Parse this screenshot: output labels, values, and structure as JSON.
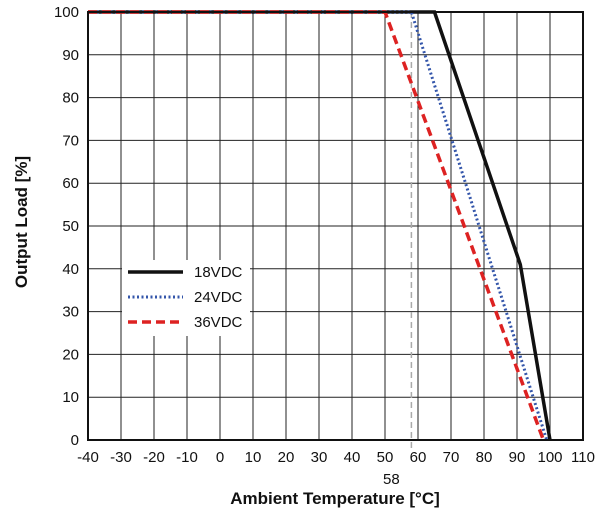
{
  "chart_data": {
    "type": "line",
    "xlabel": "Ambient Temperature [°C]",
    "ylabel": "Output Load [%]",
    "xlim": [
      -40,
      110
    ],
    "ylim": [
      0,
      100
    ],
    "x_ticks": [
      -40,
      -30,
      -20,
      -10,
      0,
      10,
      20,
      30,
      40,
      50,
      60,
      70,
      80,
      90,
      100,
      110
    ],
    "y_ticks": [
      0,
      10,
      20,
      30,
      40,
      50,
      60,
      70,
      80,
      90,
      100
    ],
    "grid": true,
    "legend_position": "lower-left",
    "reference_line": {
      "x": 58,
      "label": "58",
      "style": "dashed",
      "color": "#aaaaaa"
    },
    "series": [
      {
        "name": "18VDC",
        "color": "#111111",
        "style": "solid",
        "points": [
          [
            -40,
            100
          ],
          [
            65,
            100
          ],
          [
            91,
            41
          ],
          [
            100,
            0
          ]
        ]
      },
      {
        "name": "24VDC",
        "color": "#3355aa",
        "style": "dotted",
        "points": [
          [
            -40,
            100
          ],
          [
            58,
            100
          ],
          [
            99,
            0
          ]
        ]
      },
      {
        "name": "36VDC",
        "color": "#dd2222",
        "style": "dashed",
        "points": [
          [
            -40,
            100
          ],
          [
            50,
            100
          ],
          [
            98,
            0
          ]
        ]
      }
    ]
  }
}
